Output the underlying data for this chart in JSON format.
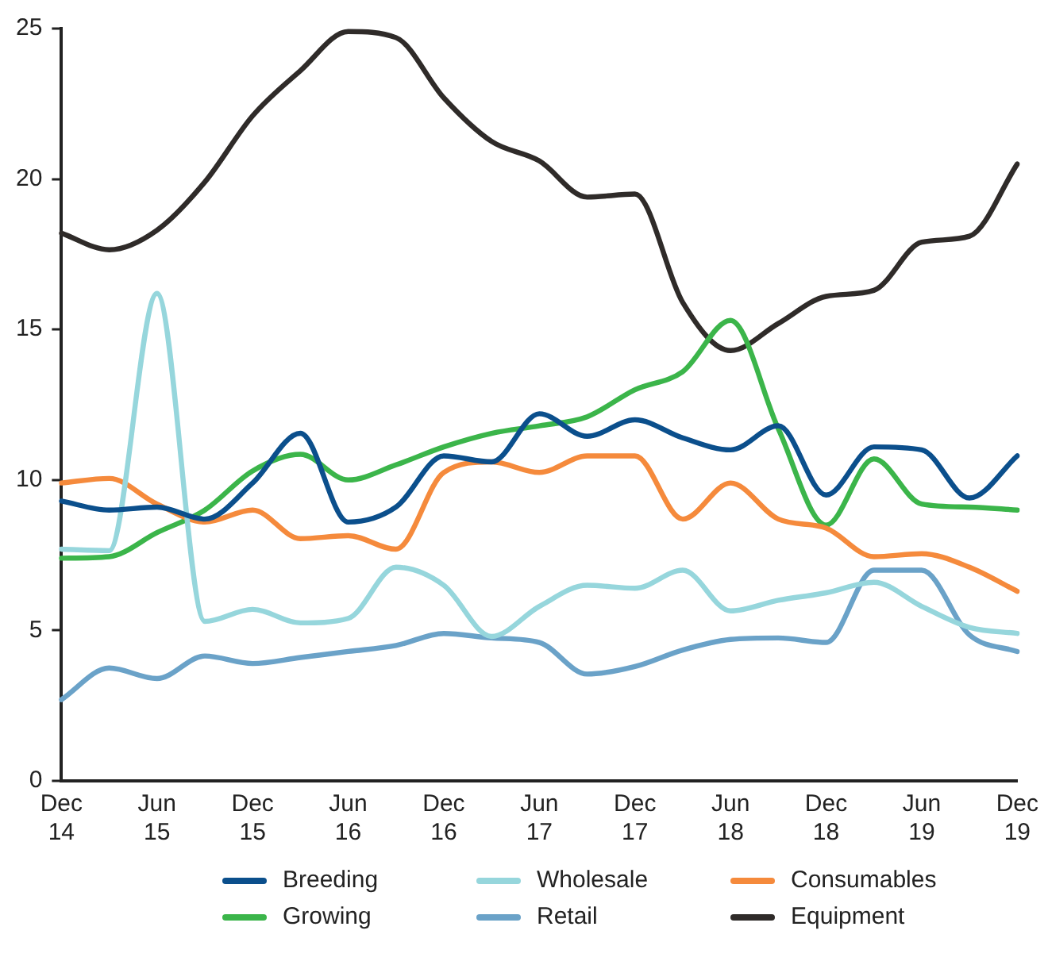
{
  "chart_data": {
    "type": "line",
    "categories": [
      "Dec 14",
      null,
      "Jun 15",
      null,
      "Dec 15",
      null,
      "Jun 16",
      null,
      "Dec 16",
      null,
      "Jun 17",
      null,
      "Dec 17",
      null,
      "Jun 18",
      null,
      "Dec 18",
      null,
      "Jun 19",
      null,
      "Dec 19"
    ],
    "series": [
      {
        "name": "Breeding",
        "color": "#0b4f8c",
        "values": [
          9.3,
          9.0,
          9.1,
          8.7,
          9.9,
          11.55,
          8.6,
          9.1,
          10.8,
          10.6,
          12.2,
          11.45,
          12.0,
          11.4,
          11.0,
          11.8,
          9.5,
          11.1,
          11.0,
          9.4,
          10.8
        ]
      },
      {
        "name": "Wholesale",
        "color": "#96d6dc",
        "values": [
          7.7,
          7.65,
          16.2,
          5.3,
          5.7,
          5.25,
          5.4,
          7.1,
          6.5,
          4.8,
          5.8,
          6.5,
          6.4,
          7.0,
          5.65,
          6.0,
          6.25,
          6.6,
          5.8,
          5.1,
          4.9
        ]
      },
      {
        "name": "Consumables",
        "color": "#f58a3c",
        "values": [
          9.9,
          10.05,
          9.2,
          8.6,
          9.0,
          8.05,
          8.15,
          7.7,
          10.25,
          10.6,
          10.25,
          10.8,
          10.8,
          8.7,
          9.9,
          8.7,
          8.4,
          7.45,
          7.55,
          7.1,
          6.3
        ]
      },
      {
        "name": "Growing",
        "color": "#3bb54a",
        "values": [
          7.4,
          7.45,
          8.25,
          9.0,
          10.3,
          10.85,
          10.0,
          10.5,
          11.1,
          11.55,
          11.8,
          12.1,
          13.0,
          13.6,
          15.3,
          11.7,
          8.5,
          10.7,
          9.2,
          9.1,
          9.0
        ]
      },
      {
        "name": "Retail",
        "color": "#6aa2c8",
        "values": [
          2.7,
          3.75,
          3.4,
          4.15,
          3.9,
          4.1,
          4.3,
          4.5,
          4.9,
          4.75,
          4.6,
          3.55,
          3.8,
          4.35,
          4.7,
          4.75,
          4.6,
          7.0,
          7.0,
          4.85,
          4.3
        ]
      },
      {
        "name": "Equipment",
        "color": "#2f2b29",
        "values": [
          18.2,
          17.65,
          18.3,
          19.9,
          22.1,
          23.6,
          24.9,
          24.7,
          22.7,
          21.25,
          20.6,
          19.4,
          19.5,
          15.9,
          14.3,
          15.2,
          16.1,
          16.3,
          17.9,
          18.1,
          20.5
        ]
      }
    ],
    "ylim": [
      0,
      25
    ],
    "yticks": [
      0,
      5,
      10,
      15,
      20,
      25
    ],
    "grid": false,
    "legend": "bottom",
    "marker": "none",
    "line_style": "solid"
  }
}
